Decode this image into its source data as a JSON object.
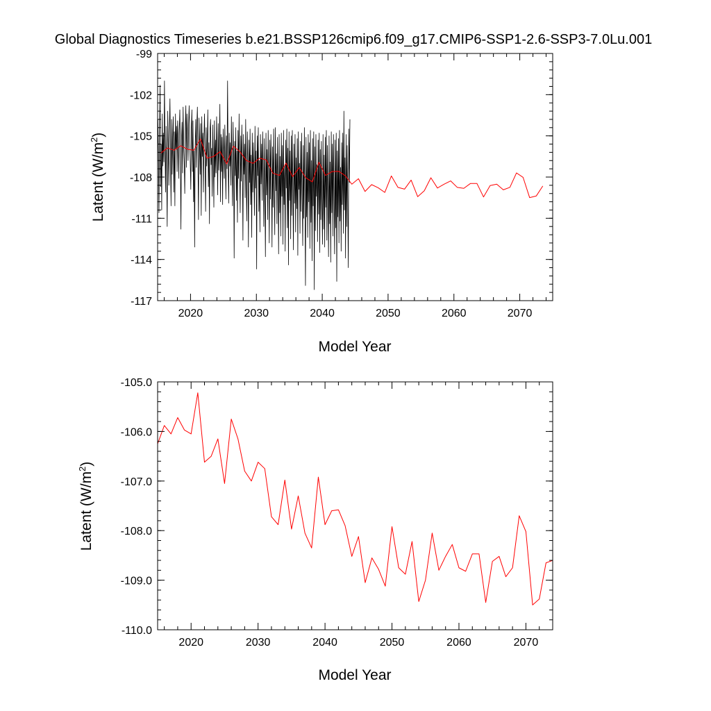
{
  "title": "Global Diagnostics Timeseries b.e21.BSSP126cmip6.f09_g17.CMIP6-SSP1-2.6-SSP3-7.0Lu.001",
  "chart_data": [
    {
      "type": "line",
      "xlabel": "Model Year",
      "ylabel_main": "Latent (W/m",
      "ylabel_sup": "2",
      "ylabel_close": ")",
      "xlim": [
        2015,
        2075
      ],
      "ylim": [
        -117,
        -99
      ],
      "xticks": [
        2020,
        2030,
        2040,
        2050,
        2060,
        2070
      ],
      "xtick_labels": [
        "2020",
        "2030",
        "2040",
        "2050",
        "2060",
        "2070"
      ],
      "yticks": [
        -99,
        -102,
        -105,
        -108,
        -111,
        -114,
        -117
      ],
      "ytick_labels": [
        "-99",
        "-102",
        "-105",
        "-108",
        "-111",
        "-114",
        "-117"
      ],
      "grid": false,
      "series": [
        {
          "kind": "monthly",
          "color": "#000000",
          "x_start": 2015.04,
          "x_step": 0.0833333,
          "values": [
            -103.8,
            -106.2,
            -110.6,
            -104.9,
            -101.3,
            -108.7,
            -105.6,
            -110.4,
            -103.4,
            -107.2,
            -104.8,
            -106.9,
            -101.0,
            -105.7,
            -109.1,
            -104.3,
            -107.6,
            -111.6,
            -103.2,
            -105.9,
            -108.6,
            -104.6,
            -102.3,
            -106.7,
            -110.1,
            -103.8,
            -107.8,
            -105.1,
            -103.6,
            -109.1,
            -104.7,
            -110.1,
            -103.4,
            -105.9,
            -104.3,
            -107.6,
            -103.9,
            -105.1,
            -108.1,
            -104.6,
            -103.1,
            -106.4,
            -111.8,
            -105.3,
            -104.0,
            -107.7,
            -102.9,
            -105.8,
            -106.9,
            -109.2,
            -104.3,
            -102.8,
            -107.3,
            -103.4,
            -104.9,
            -106.8,
            -104.1,
            -102.8,
            -105.4,
            -106.9,
            -108.9,
            -104.4,
            -103.1,
            -107.6,
            -103.9,
            -109.8,
            -106.1,
            -113.1,
            -105.7,
            -103.8,
            -107.3,
            -104.2,
            -102.9,
            -106.6,
            -111.1,
            -103.7,
            -105.5,
            -107.8,
            -104.1,
            -110.8,
            -103.6,
            -106.5,
            -104.8,
            -109.1,
            -105.2,
            -103.4,
            -106.8,
            -110.5,
            -104.4,
            -107.2,
            -105.7,
            -103.1,
            -108.7,
            -105.5,
            -111.4,
            -104.6,
            -103.8,
            -107.1,
            -105.9,
            -109.4,
            -104.2,
            -106.7,
            -110.2,
            -103.9,
            -108.0,
            -105.3,
            -107.7,
            -103.6,
            -106.2,
            -109.3,
            -104.1,
            -107.5,
            -106.0,
            -102.7,
            -109.8,
            -104.9,
            -107.6,
            -105.1,
            -110.0,
            -104.5,
            -106.3,
            -108.1,
            -104.2,
            -106.9,
            -109.6,
            -105.0,
            -107.4,
            -101.0,
            -106.7,
            -109.9,
            -104.8,
            -107.2,
            -105.5,
            -108.6,
            -103.6,
            -107.1,
            -110.1,
            -104.0,
            -106.6,
            -113.9,
            -105.4,
            -107.9,
            -104.4,
            -109.7,
            -106.1,
            -111.3,
            -104.6,
            -108.1,
            -103.4,
            -107.5,
            -110.6,
            -105.0,
            -108.3,
            -104.2,
            -106.9,
            -112.6,
            -104.9,
            -107.8,
            -105.6,
            -109.5,
            -103.8,
            -108.1,
            -111.2,
            -104.7,
            -106.8,
            -113.1,
            -105.3,
            -108.4,
            -104.5,
            -110.0,
            -106.4,
            -112.4,
            -104.8,
            -109.1,
            -105.5,
            -107.6,
            -110.8,
            -104.3,
            -108.8,
            -106.1,
            -114.7,
            -105.0,
            -107.9,
            -104.4,
            -110.5,
            -106.8,
            -112.0,
            -104.9,
            -108.5,
            -105.6,
            -109.7,
            -104.7,
            -107.4,
            -111.6,
            -105.2,
            -108.9,
            -113.8,
            -104.8,
            -109.3,
            -106.0,
            -111.1,
            -104.6,
            -108.0,
            -112.8,
            -105.3,
            -109.6,
            -104.9,
            -107.7,
            -113.1,
            -105.8,
            -110.2,
            -104.5,
            -108.7,
            -112.2,
            -104.4,
            -109.0,
            -106.3,
            -111.4,
            -105.1,
            -108.3,
            -113.6,
            -104.9,
            -110.6,
            -106.5,
            -112.3,
            -104.8,
            -109.4,
            -105.7,
            -112.9,
            -104.6,
            -110.0,
            -107.2,
            -113.4,
            -105.3,
            -108.8,
            -104.5,
            -111.7,
            -105.9,
            -114.4,
            -104.7,
            -109.7,
            -106.1,
            -112.5,
            -105.0,
            -110.8,
            -104.6,
            -108.6,
            -113.3,
            -105.6,
            -109.9,
            -104.9,
            -112.0,
            -106.6,
            -110.3,
            -105.2,
            -113.7,
            -104.7,
            -108.9,
            -107.0,
            -112.1,
            -105.4,
            -110.5,
            -104.8,
            -109.2,
            -113.0,
            -105.7,
            -111.0,
            -104.4,
            -109.6,
            -115.9,
            -105.1,
            -110.9,
            -106.2,
            -112.4,
            -104.9,
            -109.8,
            -105.5,
            -113.2,
            -104.6,
            -111.3,
            -106.8,
            -114.1,
            -105.2,
            -110.1,
            -104.7,
            -116.2,
            -105.8,
            -111.9,
            -104.9,
            -109.4,
            -107.1,
            -112.7,
            -105.3,
            -110.7,
            -104.8,
            -113.5,
            -106.0,
            -111.1,
            -105.4,
            -109.7,
            -112.9,
            -104.9,
            -111.8,
            -106.4,
            -113.1,
            -105.1,
            -110.2,
            -104.6,
            -112.6,
            -105.7,
            -109.5,
            -113.8,
            -105.0,
            -111.4,
            -106.9,
            -114.2,
            -104.7,
            -110.6,
            -105.6,
            -112.3,
            -104.9,
            -109.3,
            -113.6,
            -105.3,
            -111.7,
            -104.8,
            -115.6,
            -106.1,
            -110.9,
            -105.2,
            -112.8,
            -104.6,
            -111.2,
            -107.3,
            -113.4,
            -105.5,
            -110.0,
            -104.8,
            -112.1,
            -103.2,
            -110.4,
            -106.6,
            -113.9,
            -104.9,
            -111.6,
            -105.7,
            -109.8,
            -114.6,
            -104.5,
            -108.4,
            -103.8
          ]
        },
        {
          "kind": "annual",
          "color": "#ff0000",
          "x": [
            2015.5,
            2016.5,
            2017.5,
            2018.5,
            2019.5,
            2020.5,
            2021.5,
            2022.5,
            2023.5,
            2024.5,
            2025.5,
            2026.5,
            2027.5,
            2028.5,
            2029.5,
            2030.5,
            2031.5,
            2032.5,
            2033.5,
            2034.5,
            2035.5,
            2036.5,
            2037.5,
            2038.5,
            2039.5,
            2040.5,
            2041.5,
            2042.5,
            2043.5,
            2044.5,
            2045.5,
            2046.5,
            2047.5,
            2048.5,
            2049.5,
            2050.5,
            2051.5,
            2052.5,
            2053.5,
            2054.5,
            2055.5,
            2056.5,
            2057.5,
            2058.5,
            2059.5,
            2060.5,
            2061.5,
            2062.5,
            2063.5,
            2064.5,
            2065.5,
            2066.5,
            2067.5,
            2068.5,
            2069.5,
            2070.5,
            2071.5,
            2072.5,
            2073.5
          ],
          "values": [
            -106.25,
            -105.88,
            -106.05,
            -105.72,
            -105.97,
            -106.05,
            -105.22,
            -106.62,
            -106.5,
            -106.15,
            -107.05,
            -105.75,
            -106.15,
            -106.8,
            -107.0,
            -106.62,
            -106.75,
            -107.72,
            -107.88,
            -106.98,
            -107.97,
            -107.3,
            -108.05,
            -108.35,
            -106.92,
            -107.88,
            -107.6,
            -107.58,
            -107.9,
            -108.52,
            -108.12,
            -109.05,
            -108.55,
            -108.78,
            -109.12,
            -107.92,
            -108.75,
            -108.88,
            -108.22,
            -109.43,
            -109.0,
            -108.05,
            -108.8,
            -108.52,
            -108.28,
            -108.75,
            -108.82,
            -108.47,
            -108.47,
            -109.45,
            -108.62,
            -108.52,
            -108.93,
            -108.75,
            -107.7,
            -108.02,
            -109.5,
            -109.38,
            -108.65
          ]
        }
      ]
    },
    {
      "type": "line",
      "xlabel": "Model Year",
      "ylabel_main": "Latent (W/m",
      "ylabel_sup": "2",
      "ylabel_close": ")",
      "xlim": [
        2015,
        2074
      ],
      "ylim": [
        -110,
        -105
      ],
      "xticks": [
        2020,
        2030,
        2040,
        2050,
        2060,
        2070
      ],
      "xtick_labels": [
        "2020",
        "2030",
        "2040",
        "2050",
        "2060",
        "2070"
      ],
      "yticks": [
        -105,
        -106,
        -107,
        -108,
        -109,
        -110
      ],
      "ytick_labels": [
        "-105.0",
        "-106.0",
        "-107.0",
        "-108.0",
        "-109.0",
        "-110.0"
      ],
      "grid": false,
      "series": [
        {
          "kind": "annual",
          "color": "#ff0000",
          "x": [
            2015,
            2016,
            2017,
            2018,
            2019,
            2020,
            2021,
            2022,
            2023,
            2024,
            2025,
            2026,
            2027,
            2028,
            2029,
            2030,
            2031,
            2032,
            2033,
            2034,
            2035,
            2036,
            2037,
            2038,
            2039,
            2040,
            2041,
            2042,
            2043,
            2044,
            2045,
            2046,
            2047,
            2048,
            2049,
            2050,
            2051,
            2052,
            2053,
            2054,
            2055,
            2056,
            2057,
            2058,
            2059,
            2060,
            2061,
            2062,
            2063,
            2064,
            2065,
            2066,
            2067,
            2068,
            2069,
            2070,
            2071,
            2072,
            2073,
            2074
          ],
          "values": [
            -106.25,
            -105.88,
            -106.05,
            -105.72,
            -105.97,
            -106.05,
            -105.22,
            -106.62,
            -106.5,
            -106.15,
            -107.05,
            -105.75,
            -106.15,
            -106.8,
            -107.0,
            -106.62,
            -106.75,
            -107.72,
            -107.88,
            -106.98,
            -107.97,
            -107.3,
            -108.05,
            -108.35,
            -106.92,
            -107.88,
            -107.6,
            -107.58,
            -107.9,
            -108.52,
            -108.12,
            -109.05,
            -108.55,
            -108.78,
            -109.12,
            -107.92,
            -108.75,
            -108.88,
            -108.22,
            -109.43,
            -109.0,
            -108.05,
            -108.8,
            -108.52,
            -108.28,
            -108.75,
            -108.82,
            -108.47,
            -108.47,
            -109.45,
            -108.62,
            -108.52,
            -108.93,
            -108.75,
            -107.7,
            -108.02,
            -109.5,
            -109.38,
            -108.65,
            -108.6
          ]
        }
      ]
    }
  ]
}
